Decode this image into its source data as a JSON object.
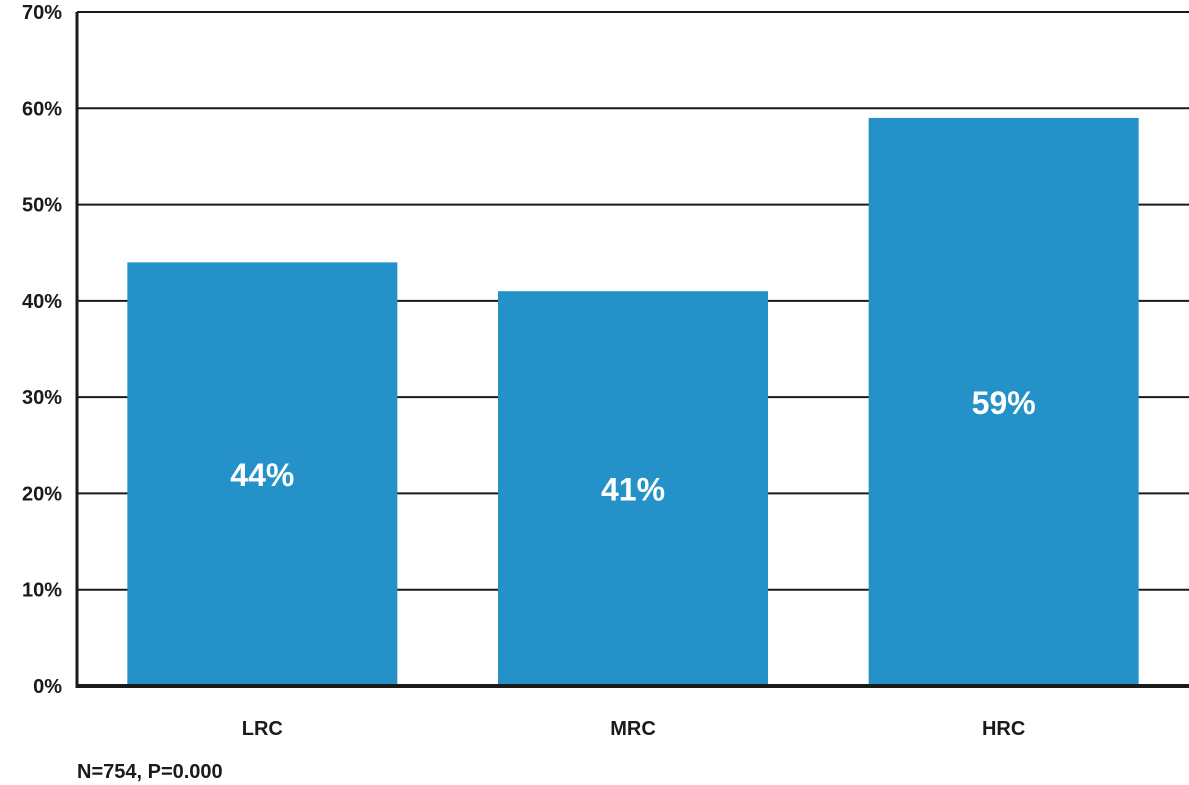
{
  "chart_data": {
    "type": "bar",
    "categories": [
      "LRC",
      "MRC",
      "HRC"
    ],
    "values": [
      44,
      41,
      59
    ],
    "data_labels": [
      "44%",
      "41%",
      "59%"
    ],
    "ylim": [
      0,
      70
    ],
    "y_ticks": [
      "0%",
      "10%",
      "20%",
      "30%",
      "40%",
      "50%",
      "60%",
      "70%"
    ],
    "grid": true,
    "bar_color": "#2492c8",
    "note": "N=754, P=0.000"
  }
}
